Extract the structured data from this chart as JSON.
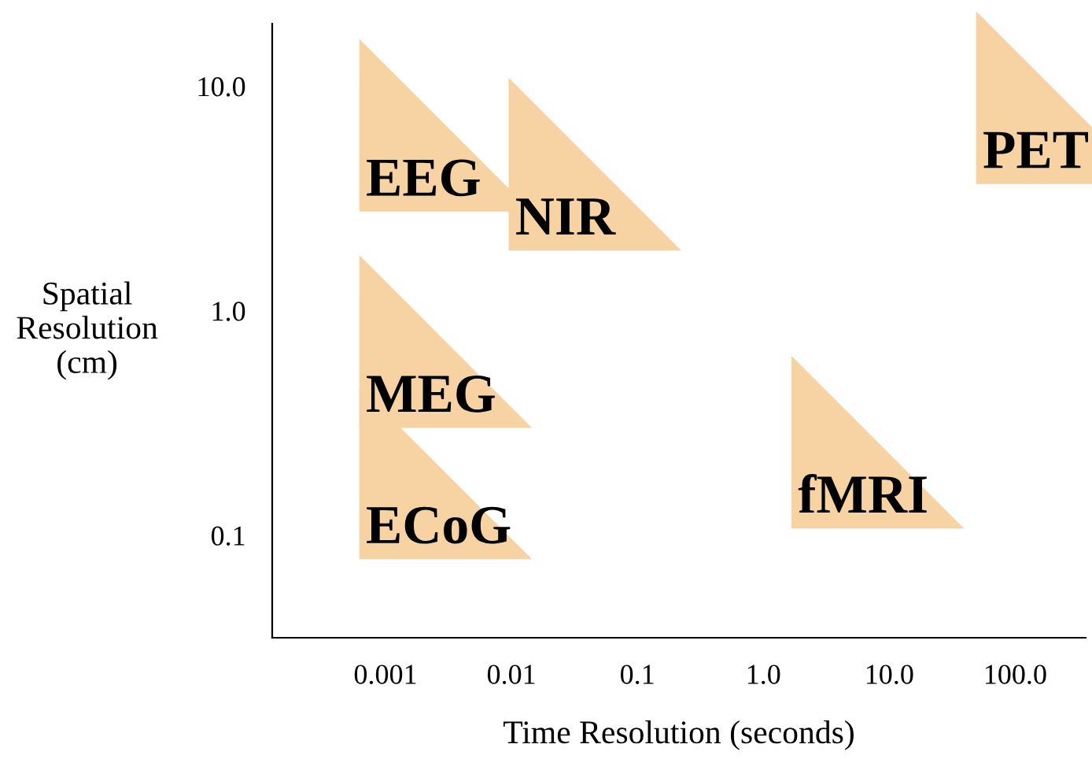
{
  "chart_data": {
    "type": "scatter",
    "xlabel": "Time Resolution (seconds)",
    "ylabel": "Spatial\nResolution\n(cm)",
    "log": "xy",
    "xlim": [
      0.000126,
      363
    ],
    "ylim": [
      0.035,
      19
    ],
    "xticks": [
      {
        "value": 0.001,
        "label": "0.001"
      },
      {
        "value": 0.01,
        "label": "0.01"
      },
      {
        "value": 0.1,
        "label": "0.1"
      },
      {
        "value": 1,
        "label": "1.0"
      },
      {
        "value": 10,
        "label": "10.0"
      },
      {
        "value": 100,
        "label": "100.0"
      }
    ],
    "yticks": [
      {
        "value": 0.1,
        "label": "0.1"
      },
      {
        "value": 1,
        "label": "1.0"
      },
      {
        "value": 10,
        "label": "10.0"
      }
    ],
    "marker": "triangle",
    "x": [
      0.003,
      0.046,
      237,
      0.003,
      8.1,
      0.003
    ],
    "values": [
      6.7,
      4.5,
      8.9,
      0.73,
      0.26,
      0.19
    ],
    "value_labels": [
      "EEG",
      "NIR",
      "PET",
      "MEG",
      "fMRI",
      "ECoG"
    ],
    "color": "#f7d3a4"
  }
}
